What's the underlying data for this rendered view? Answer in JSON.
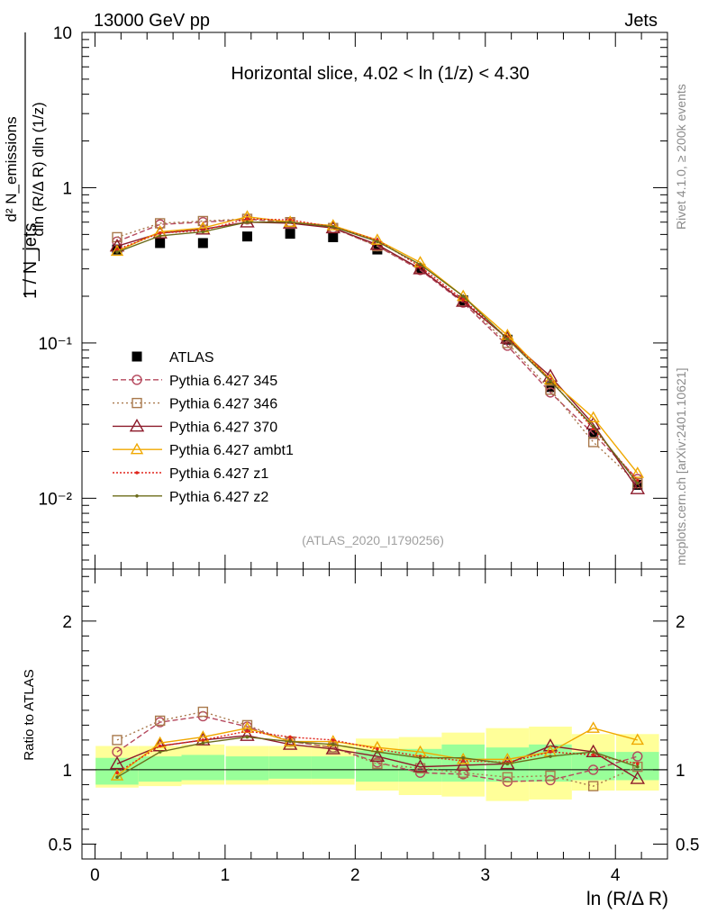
{
  "header": {
    "left": "13000 GeV pp",
    "right": "Jets"
  },
  "side_labels": {
    "rivet": "Rivet 4.1.0, ≥ 200k events",
    "mcplots": "mcplots.cern.ch [arXiv:2401.10621]"
  },
  "colors": {
    "atlas": "#000000",
    "p345": "#b5485d",
    "p346": "#a9794c",
    "p370": "#8c1a2a",
    "ambt1": "#f0a800",
    "z1": "#e0241b",
    "z2": "#6b6b1a",
    "band_outer": "#ffff99",
    "band_inner": "#99ff99"
  },
  "chart_data": {
    "type": "line",
    "title": "Horizontal slice, 4.02 < ln (1/z) < 4.30",
    "analysis_id": "(ATLAS_2020_I1790256)",
    "xlabel": "ln (R/Δ R)",
    "xlim": [
      -0.1,
      4.4
    ],
    "main": {
      "yscale": "log",
      "ylim": [
        0.0035,
        10
      ],
      "ylabel_fraction_top": "d² N_emissions",
      "ylabel_fraction_bottom": "dln (R/Δ R) dln (1/z)",
      "ylabel_prefix": "1 / N_jets",
      "ytick_labels": [
        "10",
        "1",
        "10⁻¹",
        "10⁻²"
      ],
      "ytick_values": [
        10,
        1,
        0.1,
        0.01
      ]
    },
    "ratio": {
      "ylim": [
        0.4,
        2.35
      ],
      "ylabel": "Ratio to ATLAS",
      "ytick_labels": [
        "2",
        "1",
        "0.5"
      ],
      "ytick_values": [
        2,
        1,
        0.5
      ],
      "band_inner": [
        [
          0.9,
          1.08
        ],
        [
          0.92,
          1.09
        ],
        [
          0.93,
          1.1
        ],
        [
          0.93,
          1.09
        ],
        [
          0.94,
          1.09
        ],
        [
          0.94,
          1.09
        ],
        [
          0.92,
          1.13
        ],
        [
          0.92,
          1.14
        ],
        [
          0.92,
          1.17
        ],
        [
          0.92,
          1.15
        ],
        [
          0.92,
          1.17
        ],
        [
          0.93,
          1.12
        ],
        [
          0.93,
          1.12
        ]
      ],
      "band_outer": [
        [
          0.88,
          1.16
        ],
        [
          0.89,
          1.16
        ],
        [
          0.9,
          1.17
        ],
        [
          0.9,
          1.16
        ],
        [
          0.9,
          1.16
        ],
        [
          0.9,
          1.17
        ],
        [
          0.86,
          1.21
        ],
        [
          0.83,
          1.22
        ],
        [
          0.82,
          1.25
        ],
        [
          0.79,
          1.28
        ],
        [
          0.8,
          1.29
        ],
        [
          0.86,
          1.24
        ],
        [
          0.86,
          1.24
        ]
      ]
    },
    "x": [
      0.17,
      0.5,
      0.83,
      1.17,
      1.5,
      1.83,
      2.17,
      2.5,
      2.83,
      3.17,
      3.5,
      3.83,
      4.17
    ],
    "xtick_labels": [
      "0",
      "1",
      "2",
      "3",
      "4"
    ],
    "xtick_values": [
      0,
      1,
      2,
      3,
      4
    ],
    "series": [
      {
        "name": "ATLAS",
        "style": "data",
        "color": "#000000",
        "values": [
          0.4,
          0.44,
          0.44,
          0.485,
          0.505,
          0.48,
          0.4,
          0.3,
          0.188,
          0.105,
          0.052,
          0.026,
          0.0122
        ]
      },
      {
        "name": "Pythia 6.427 345",
        "style": "circle",
        "dash": "6,3",
        "color": "#b5485d",
        "values": [
          0.45,
          0.58,
          0.6,
          0.625,
          0.6,
          0.55,
          0.42,
          0.295,
          0.182,
          0.096,
          0.048,
          0.026,
          0.0133
        ],
        "ratio": [
          1.12,
          1.32,
          1.36,
          1.29,
          1.19,
          1.15,
          1.05,
          0.98,
          0.97,
          0.92,
          0.93,
          1.0,
          1.09
        ]
      },
      {
        "name": "Pythia 6.427 346",
        "style": "square",
        "dash": "2,3",
        "color": "#a9794c",
        "values": [
          0.48,
          0.59,
          0.61,
          0.63,
          0.6,
          0.55,
          0.42,
          0.3,
          0.185,
          0.1,
          0.05,
          0.023,
          0.0125
        ],
        "ratio": [
          1.2,
          1.33,
          1.39,
          1.3,
          1.19,
          1.15,
          1.04,
          1.01,
          0.98,
          0.95,
          0.96,
          0.89,
          1.02
        ]
      },
      {
        "name": "Pythia 6.427 370",
        "style": "triangle",
        "dash": "",
        "color": "#8c1a2a",
        "values": [
          0.42,
          0.51,
          0.54,
          0.6,
          0.59,
          0.55,
          0.43,
          0.3,
          0.185,
          0.107,
          0.061,
          0.03,
          0.0115
        ],
        "ratio": [
          1.04,
          1.16,
          1.2,
          1.23,
          1.17,
          1.14,
          1.09,
          1.02,
          1.03,
          1.04,
          1.16,
          1.12,
          0.94
        ]
      },
      {
        "name": "Pythia 6.427 ambt1",
        "style": "triangle-open",
        "dash": "",
        "color": "#f0a800",
        "values": [
          0.39,
          0.52,
          0.55,
          0.65,
          0.6,
          0.57,
          0.46,
          0.33,
          0.2,
          0.112,
          0.058,
          0.033,
          0.0145
        ],
        "ratio": [
          0.96,
          1.18,
          1.22,
          1.28,
          1.19,
          1.19,
          1.15,
          1.12,
          1.07,
          1.07,
          1.12,
          1.28,
          1.2
        ]
      },
      {
        "name": "Pythia 6.427 z1",
        "style": "dot",
        "dash": "2,2",
        "color": "#e0241b",
        "values": [
          0.4,
          0.51,
          0.53,
          0.63,
          0.62,
          0.56,
          0.46,
          0.31,
          0.19,
          0.108,
          0.058,
          0.028,
          0.013
        ],
        "ratio": [
          0.98,
          1.16,
          1.2,
          1.26,
          1.22,
          1.2,
          1.14,
          1.09,
          1.06,
          1.05,
          1.12,
          1.1,
          1.04
        ]
      },
      {
        "name": "Pythia 6.427 z2",
        "style": "dot",
        "dash": "",
        "color": "#6b6b1a",
        "values": [
          0.385,
          0.49,
          0.52,
          0.6,
          0.6,
          0.56,
          0.45,
          0.32,
          0.2,
          0.106,
          0.057,
          0.029,
          0.0125
        ],
        "ratio": [
          0.95,
          1.12,
          1.18,
          1.22,
          1.19,
          1.17,
          1.12,
          1.08,
          1.08,
          1.04,
          1.09,
          1.12,
          1.02
        ]
      }
    ]
  }
}
